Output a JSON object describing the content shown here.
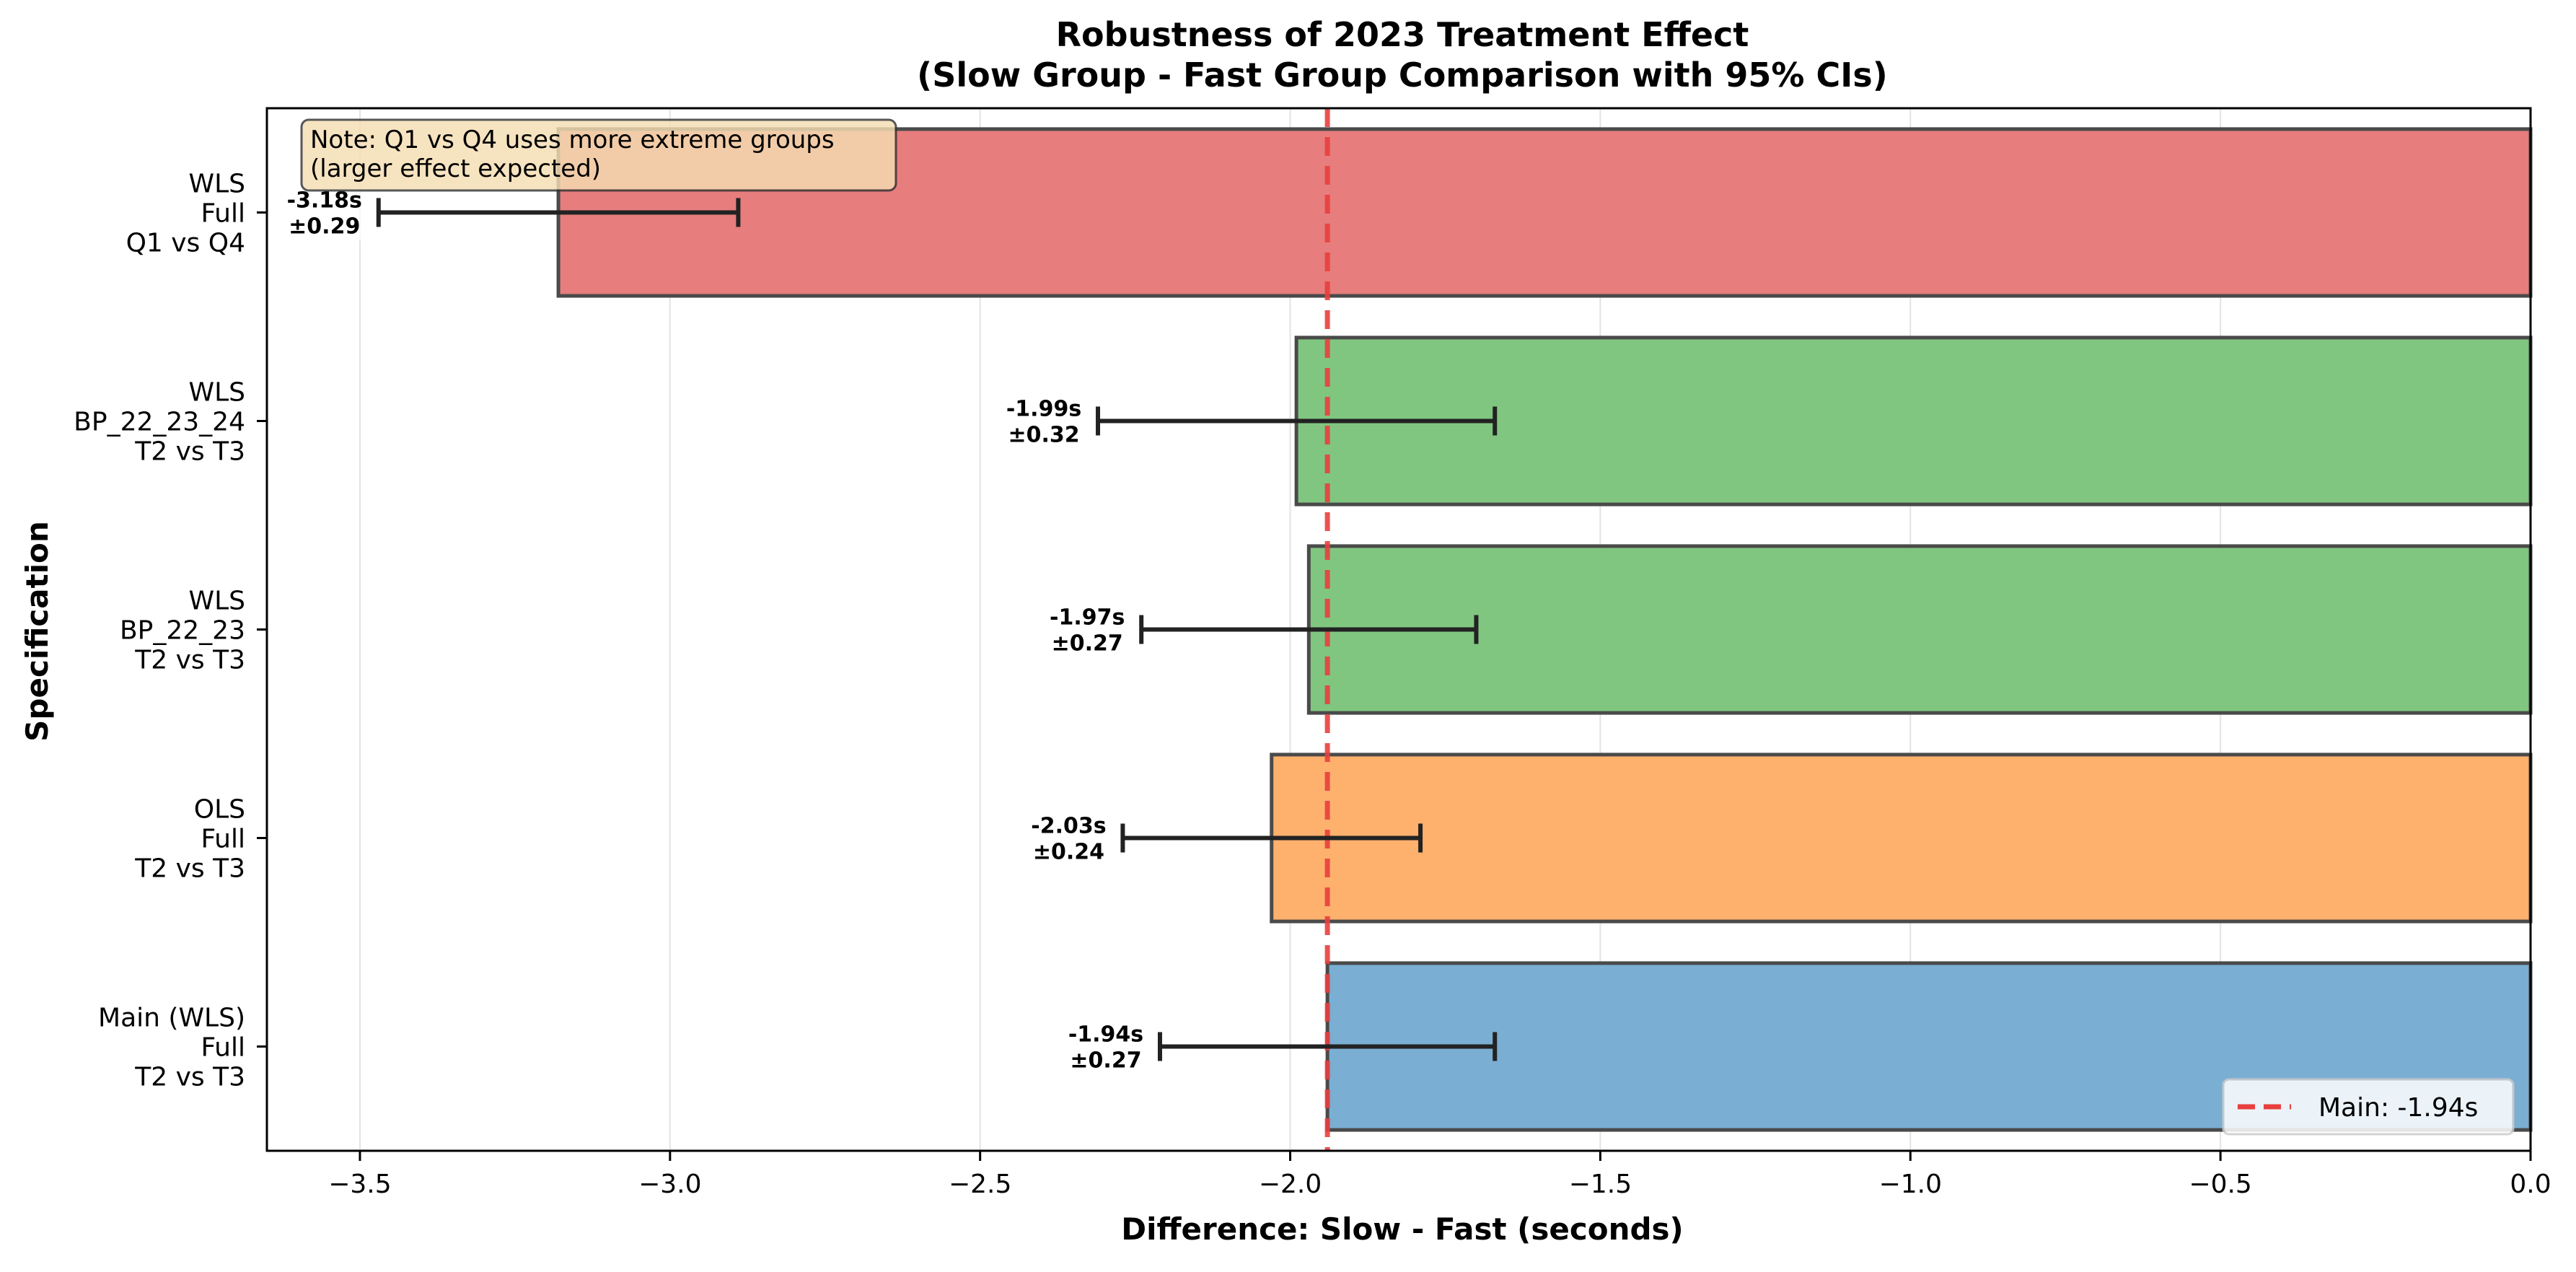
{
  "chart_data": {
    "type": "bar",
    "orientation": "horizontal",
    "title": "Robustness of 2023 Treatment Effect",
    "subtitle": "(Slow Group - Fast Group Comparison with 95% CIs)",
    "xlabel": "Difference: Slow - Fast (seconds)",
    "ylabel": "Specification",
    "xlim": [
      -3.65,
      0.0
    ],
    "xticks": [
      -3.5,
      -3.0,
      -2.5,
      -2.0,
      -1.5,
      -1.0,
      -0.5,
      0.0
    ],
    "xtick_labels": [
      "−3.5",
      "−3.0",
      "−2.5",
      "−2.0",
      "−1.5",
      "−1.0",
      "−0.5",
      "0.0"
    ],
    "grid": "vertical",
    "reference_line": {
      "value": -1.94,
      "label": "Main: -1.94s",
      "color": "#e8403e",
      "style": "dashed"
    },
    "legend_position": "lower-right",
    "note": [
      "Note: Q1 vs Q4 uses more extreme groups",
      "(larger effect expected)"
    ],
    "bars": [
      {
        "labels": [
          "Main (WLS)",
          "Full",
          "T2 vs T3"
        ],
        "value": -1.94,
        "ci": 0.27,
        "value_label": "-1.94s",
        "ci_label": "±0.27",
        "color": "#7aaed3"
      },
      {
        "labels": [
          "OLS",
          "Full",
          "T2 vs T3"
        ],
        "value": -2.03,
        "ci": 0.24,
        "value_label": "-2.03s",
        "ci_label": "±0.24",
        "color": "#feb06d"
      },
      {
        "labels": [
          "WLS",
          "BP_22_23",
          "T2 vs T3"
        ],
        "value": -1.97,
        "ci": 0.27,
        "value_label": "-1.97s",
        "ci_label": "±0.27",
        "color": "#80c680"
      },
      {
        "labels": [
          "WLS",
          "BP_22_23_24",
          "T2 vs T3"
        ],
        "value": -1.99,
        "ci": 0.32,
        "value_label": "-1.99s",
        "ci_label": "±0.32",
        "color": "#80c680"
      },
      {
        "labels": [
          "WLS",
          "Full",
          "Q1 vs Q4"
        ],
        "value": -3.18,
        "ci": 0.29,
        "value_label": "-3.18s",
        "ci_label": "±0.29",
        "color": "#e77d7d"
      }
    ]
  }
}
